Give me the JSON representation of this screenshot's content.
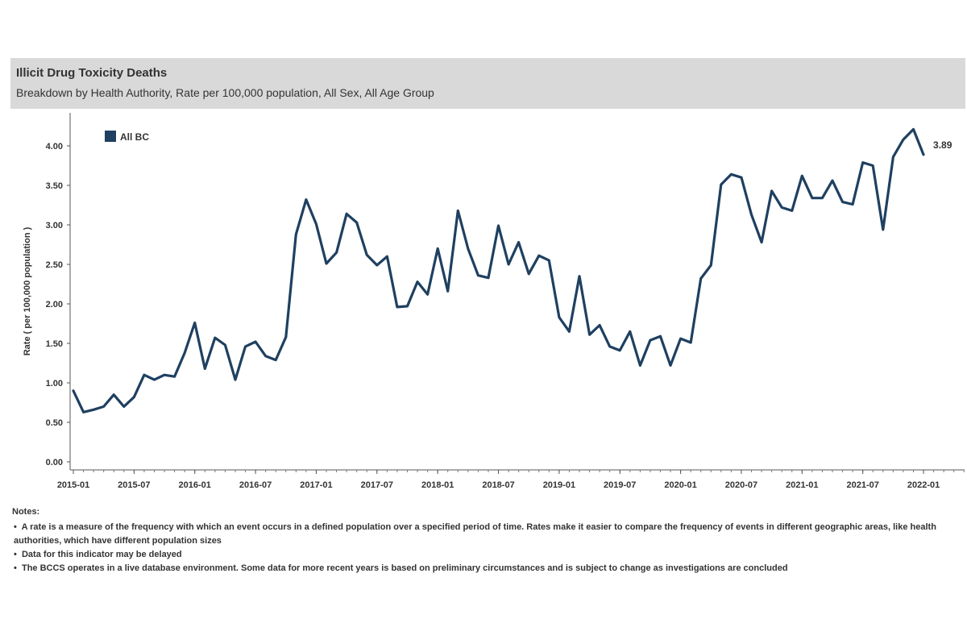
{
  "header": {
    "title": "Illicit Drug Toxicity Deaths",
    "subtitle": "Breakdown by Health Authority, Rate per 100,000 population, All  Sex,  All Age Group"
  },
  "chart_data": {
    "type": "line",
    "title": "Illicit Drug Toxicity Deaths",
    "subtitle": "Breakdown by Health Authority, Rate per 100,000 population, All  Sex,  All Age Group",
    "ylabel": "Rate ( per 100,000 population )",
    "xlabel": "",
    "ylim": [
      0,
      4.4
    ],
    "y_ticks": [
      "0.00",
      "0.50",
      "1.00",
      "1.50",
      "2.00",
      "2.50",
      "3.00",
      "3.50",
      "4.00"
    ],
    "x_ticks": [
      "2015-01",
      "2015-07",
      "2016-01",
      "2016-07",
      "2017-01",
      "2017-07",
      "2018-01",
      "2018-07",
      "2019-01",
      "2019-07",
      "2020-01",
      "2020-07",
      "2021-01",
      "2021-07",
      "2022-01"
    ],
    "grid": false,
    "legend": {
      "position": "top-left",
      "entries": [
        "All BC"
      ]
    },
    "series": [
      {
        "name": "All BC",
        "color": "#1f4060",
        "x_start": "2015-01",
        "interval": "monthly",
        "values": [
          0.9,
          0.63,
          0.66,
          0.7,
          0.85,
          0.7,
          0.82,
          1.1,
          1.04,
          1.1,
          1.08,
          1.38,
          1.76,
          1.18,
          1.57,
          1.48,
          1.04,
          1.46,
          1.52,
          1.34,
          1.29,
          1.58,
          2.88,
          3.32,
          3.01,
          2.51,
          2.65,
          3.14,
          3.03,
          2.62,
          2.49,
          2.6,
          1.96,
          1.97,
          2.28,
          2.12,
          2.7,
          2.16,
          3.18,
          2.7,
          2.36,
          2.33,
          2.99,
          2.5,
          2.78,
          2.38,
          2.61,
          2.55,
          1.83,
          1.65,
          2.35,
          1.61,
          1.73,
          1.46,
          1.41,
          1.65,
          1.22,
          1.54,
          1.59,
          1.22,
          1.56,
          1.51,
          2.32,
          2.49,
          3.51,
          3.64,
          3.6,
          3.13,
          2.78,
          3.43,
          3.22,
          3.18,
          3.62,
          3.34,
          3.34,
          3.56,
          3.29,
          3.26,
          3.79,
          3.75,
          2.94,
          3.86,
          4.08,
          4.21,
          3.89
        ]
      }
    ],
    "annotations": [
      {
        "text": "3.89"
      }
    ]
  },
  "notes": {
    "heading": "Notes:",
    "items": [
      "A rate  is a measure of the frequency with which an event occurs in a defined population over a specified period of time. Rates make it easier to compare the frequency of events in different geographic areas, like health authorities, which have different population sizes",
      "Data for this indicator may be delayed",
      "The BCCS operates in a live database environment. Some data for more recent years is based on preliminary circumstances and is subject to change as investigations are concluded"
    ]
  }
}
